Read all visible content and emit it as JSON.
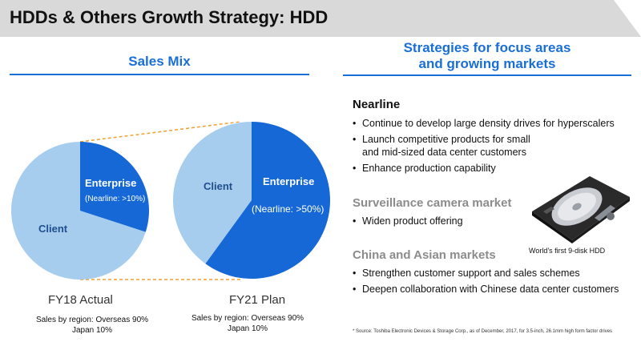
{
  "header": {
    "title": "HDDs & Others Growth Strategy: HDD"
  },
  "left": {
    "heading": "Sales Mix",
    "pies": [
      {
        "period": "FY18 Actual",
        "client_label": "Client",
        "enterprise_label": "Enterprise",
        "enterprise_note": "(Nearline: >10%)",
        "enterprise_share": 0.3,
        "region_line1": "Sales by region: Overseas 90%",
        "region_line2": "Japan 10%"
      },
      {
        "period": "FY21 Plan",
        "client_label": "Client",
        "enterprise_label": "Enterprise",
        "enterprise_note": "(Nearline: >50%)",
        "enterprise_share": 0.6,
        "region_line1": "Sales by region: Overseas 90%",
        "region_line2": "Japan 10%"
      }
    ]
  },
  "right": {
    "heading_line1": "Strategies for focus areas",
    "heading_line2": "and growing markets",
    "sections": [
      {
        "title": "Nearline",
        "bullets": [
          "Continue to develop large density drives for hyperscalers",
          "Launch competitive products for small and mid-sized data center customers",
          "Enhance production capability"
        ]
      },
      {
        "title": "Surveillance camera market",
        "bullets": [
          "Widen product offering"
        ]
      },
      {
        "title": "China and Asian markets",
        "bullets": [
          "Strengthen customer support and sales schemes",
          "Deepen collaboration with Chinese data center customers"
        ]
      }
    ],
    "image_caption": "World’s first 9-disk HDD",
    "footnote": "* Source: Toshiba Electronic Devices & Storage Corp., as of December, 2017, for 3.5-inch, 26.1mm high form factor drives"
  },
  "colors": {
    "accent": "#1a6fd6",
    "enterprise": "#1568d6",
    "client": "#a7cdee",
    "connector": "#f0a030",
    "title_bg": "#d9d9d9"
  }
}
